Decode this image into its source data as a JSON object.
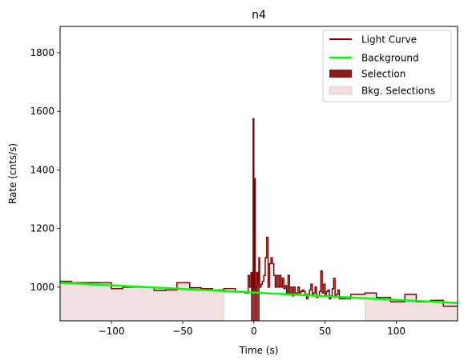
{
  "chart_data": {
    "type": "line",
    "title": "n4",
    "xlabel": "Time (s)",
    "ylabel": "Rate (cnts/s)",
    "xlim": [
      -136,
      143
    ],
    "ylim": [
      885,
      1890
    ],
    "xticks": [
      -100,
      -50,
      0,
      50,
      100
    ],
    "yticks": [
      1000,
      1200,
      1400,
      1600,
      1800
    ],
    "legend_position": "top-right",
    "colors": {
      "light_curve": "#7f0000",
      "background": "#00ff00",
      "selection": "#8b1a1a",
      "bkg_selection": "#f0e0e0",
      "bkg_selection_edge": "#ddc0c0"
    },
    "legend": [
      {
        "label": "Light Curve",
        "kind": "line",
        "color": "#7f0000"
      },
      {
        "label": "Background",
        "kind": "line",
        "color": "#00ff00"
      },
      {
        "label": "Selection",
        "kind": "patch",
        "color": "#8b1a1a"
      },
      {
        "label": "Bkg. Selections",
        "kind": "patch",
        "color": "#f0e0e0"
      }
    ],
    "bkg_selections": [
      [
        -136,
        -21
      ],
      [
        78,
        143
      ]
    ],
    "selection_range": [
      -2,
      4
    ],
    "background_line": {
      "x": [
        -136,
        143
      ],
      "y": [
        1015,
        946
      ]
    },
    "light_curve": {
      "edges": [
        -136,
        -128,
        -114,
        -100,
        -92,
        -85,
        -70,
        -62,
        -54,
        -45,
        -37,
        -29,
        -21,
        -13,
        -6,
        -4,
        -3,
        -2,
        -1,
        -0.5,
        0,
        0.5,
        1,
        1.5,
        2,
        2.5,
        3,
        3.5,
        4,
        5,
        6,
        7,
        8,
        9,
        10,
        11,
        12,
        13,
        14,
        15,
        16,
        17,
        18,
        19,
        20,
        21,
        22,
        23,
        24,
        25,
        26,
        27,
        28,
        29,
        30,
        31,
        32,
        33,
        34,
        35,
        36,
        37,
        38,
        39,
        40,
        41,
        42,
        43,
        44,
        45,
        46,
        47,
        48,
        49,
        50,
        51,
        52,
        53,
        54,
        55,
        56,
        57,
        58,
        59,
        60,
        62,
        68,
        78,
        86,
        96,
        106,
        114,
        124,
        133,
        143
      ],
      "values": [
        1020,
        1015,
        1015,
        995,
        1000,
        1000,
        988,
        990,
        1015,
        998,
        995,
        990,
        995,
        985,
        980,
        1040,
        1000,
        1050,
        990,
        1575,
        1000,
        1370,
        990,
        1000,
        1050,
        1010,
        1050,
        1100,
        1000,
        1010,
        1020,
        1040,
        1100,
        1170,
        1000,
        1080,
        1100,
        1080,
        1040,
        1000,
        1040,
        1000,
        1040,
        1000,
        1030,
        995,
        1005,
        980,
        1040,
        980,
        1000,
        970,
        1000,
        980,
        975,
        1000,
        980,
        985,
        990,
        985,
        975,
        960,
        975,
        990,
        1010,
        970,
        980,
        1000,
        965,
        970,
        985,
        1055,
        980,
        1010,
        970,
        985,
        990,
        960,
        970,
        995,
        1030,
        965,
        975,
        990,
        960,
        960,
        975,
        980,
        965,
        950,
        975,
        950,
        955,
        935
      ]
    }
  }
}
